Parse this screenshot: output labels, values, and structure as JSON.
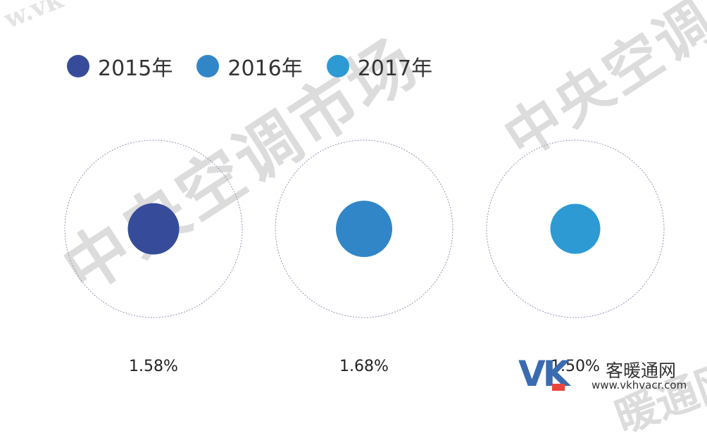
{
  "chart_data": {
    "type": "bubble",
    "title": "",
    "categories": [
      "2015年",
      "2016年",
      "2017年"
    ],
    "values": [
      1.58,
      1.68,
      1.5
    ],
    "value_labels": [
      "1.58%",
      "1.68%",
      "1.50%"
    ],
    "unit": "%",
    "colors": [
      "#364c9a",
      "#3186c7",
      "#2d9ad3"
    ],
    "legend_position": "top-left",
    "grid": false
  },
  "watermark": {
    "text_main": "中央空调市场",
    "text_upper": "中央空调",
    "text_corner": "w.vk",
    "text_bottom": "暖通网"
  },
  "logo": {
    "mark": "VK",
    "name": "客暖通网",
    "url": "www.vkhvacr.com",
    "colors": [
      "#3a6bb0",
      "#e8453c"
    ]
  }
}
